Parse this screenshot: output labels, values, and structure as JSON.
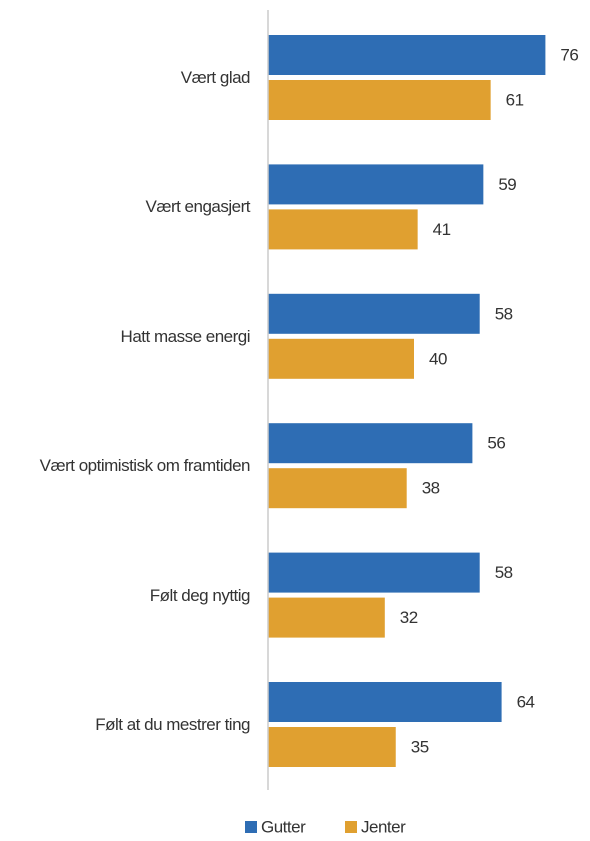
{
  "chart_data": {
    "type": "bar",
    "orientation": "horizontal",
    "categories": [
      "Vært glad",
      "Vært engasjert",
      "Hatt masse energi",
      "Vært optimistisk om framtiden",
      "Følt deg nyttig",
      "Følt at du mestrer ting"
    ],
    "series": [
      {
        "name": "Gutter",
        "color": "#2e6db4",
        "values": [
          76,
          59,
          58,
          56,
          58,
          64
        ]
      },
      {
        "name": "Jenter",
        "color": "#e0a030",
        "values": [
          61,
          41,
          40,
          38,
          32,
          35
        ]
      }
    ],
    "xlim": [
      0,
      80
    ],
    "legend": "bottom"
  }
}
